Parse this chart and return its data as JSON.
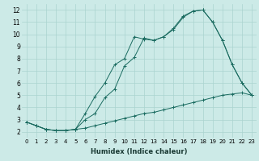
{
  "xlabel": "Humidex (Indice chaleur)",
  "ylabel": "",
  "background_color": "#cceae7",
  "grid_color": "#aad4d0",
  "line_color": "#1a6b60",
  "xlim": [
    -0.5,
    23.5
  ],
  "ylim": [
    1.5,
    12.5
  ],
  "yticks": [
    2,
    3,
    4,
    5,
    6,
    7,
    8,
    9,
    10,
    11,
    12
  ],
  "xticks": [
    0,
    1,
    2,
    3,
    4,
    5,
    6,
    7,
    8,
    9,
    10,
    11,
    12,
    13,
    14,
    15,
    16,
    17,
    18,
    19,
    20,
    21,
    22,
    23
  ],
  "series1_x": [
    0,
    1,
    2,
    3,
    4,
    5,
    6,
    7,
    8,
    9,
    10,
    11,
    12,
    13,
    14,
    15,
    16,
    17,
    18,
    19,
    20,
    21,
    22,
    23
  ],
  "series1_y": [
    2.8,
    2.5,
    2.2,
    2.1,
    2.1,
    2.2,
    2.3,
    2.5,
    2.7,
    2.9,
    3.1,
    3.3,
    3.5,
    3.6,
    3.8,
    4.0,
    4.2,
    4.4,
    4.6,
    4.8,
    5.0,
    5.1,
    5.2,
    5.0
  ],
  "series2_x": [
    0,
    1,
    2,
    3,
    4,
    5,
    6,
    7,
    8,
    9,
    10,
    11,
    12,
    13,
    14,
    15,
    16,
    17,
    18,
    19,
    20,
    21,
    22,
    23
  ],
  "series2_y": [
    2.8,
    2.5,
    2.2,
    2.1,
    2.1,
    2.2,
    3.5,
    4.9,
    6.0,
    7.5,
    8.0,
    9.8,
    9.6,
    9.5,
    9.8,
    10.5,
    11.5,
    11.9,
    12.0,
    11.0,
    9.5,
    7.5,
    6.0,
    5.0
  ],
  "series3_x": [
    0,
    1,
    2,
    3,
    4,
    5,
    6,
    7,
    8,
    9,
    10,
    11,
    12,
    13,
    14,
    15,
    16,
    17,
    18,
    19,
    20,
    21,
    22,
    23
  ],
  "series3_y": [
    2.8,
    2.5,
    2.2,
    2.1,
    2.1,
    2.2,
    3.0,
    3.5,
    4.8,
    5.5,
    7.4,
    8.1,
    9.7,
    9.5,
    9.8,
    10.4,
    11.4,
    11.9,
    12.0,
    11.0,
    9.5,
    7.5,
    6.0,
    5.0
  ],
  "title_fontsize": 7,
  "xlabel_fontsize": 6,
  "tick_fontsize_x": 5,
  "tick_fontsize_y": 5.5
}
